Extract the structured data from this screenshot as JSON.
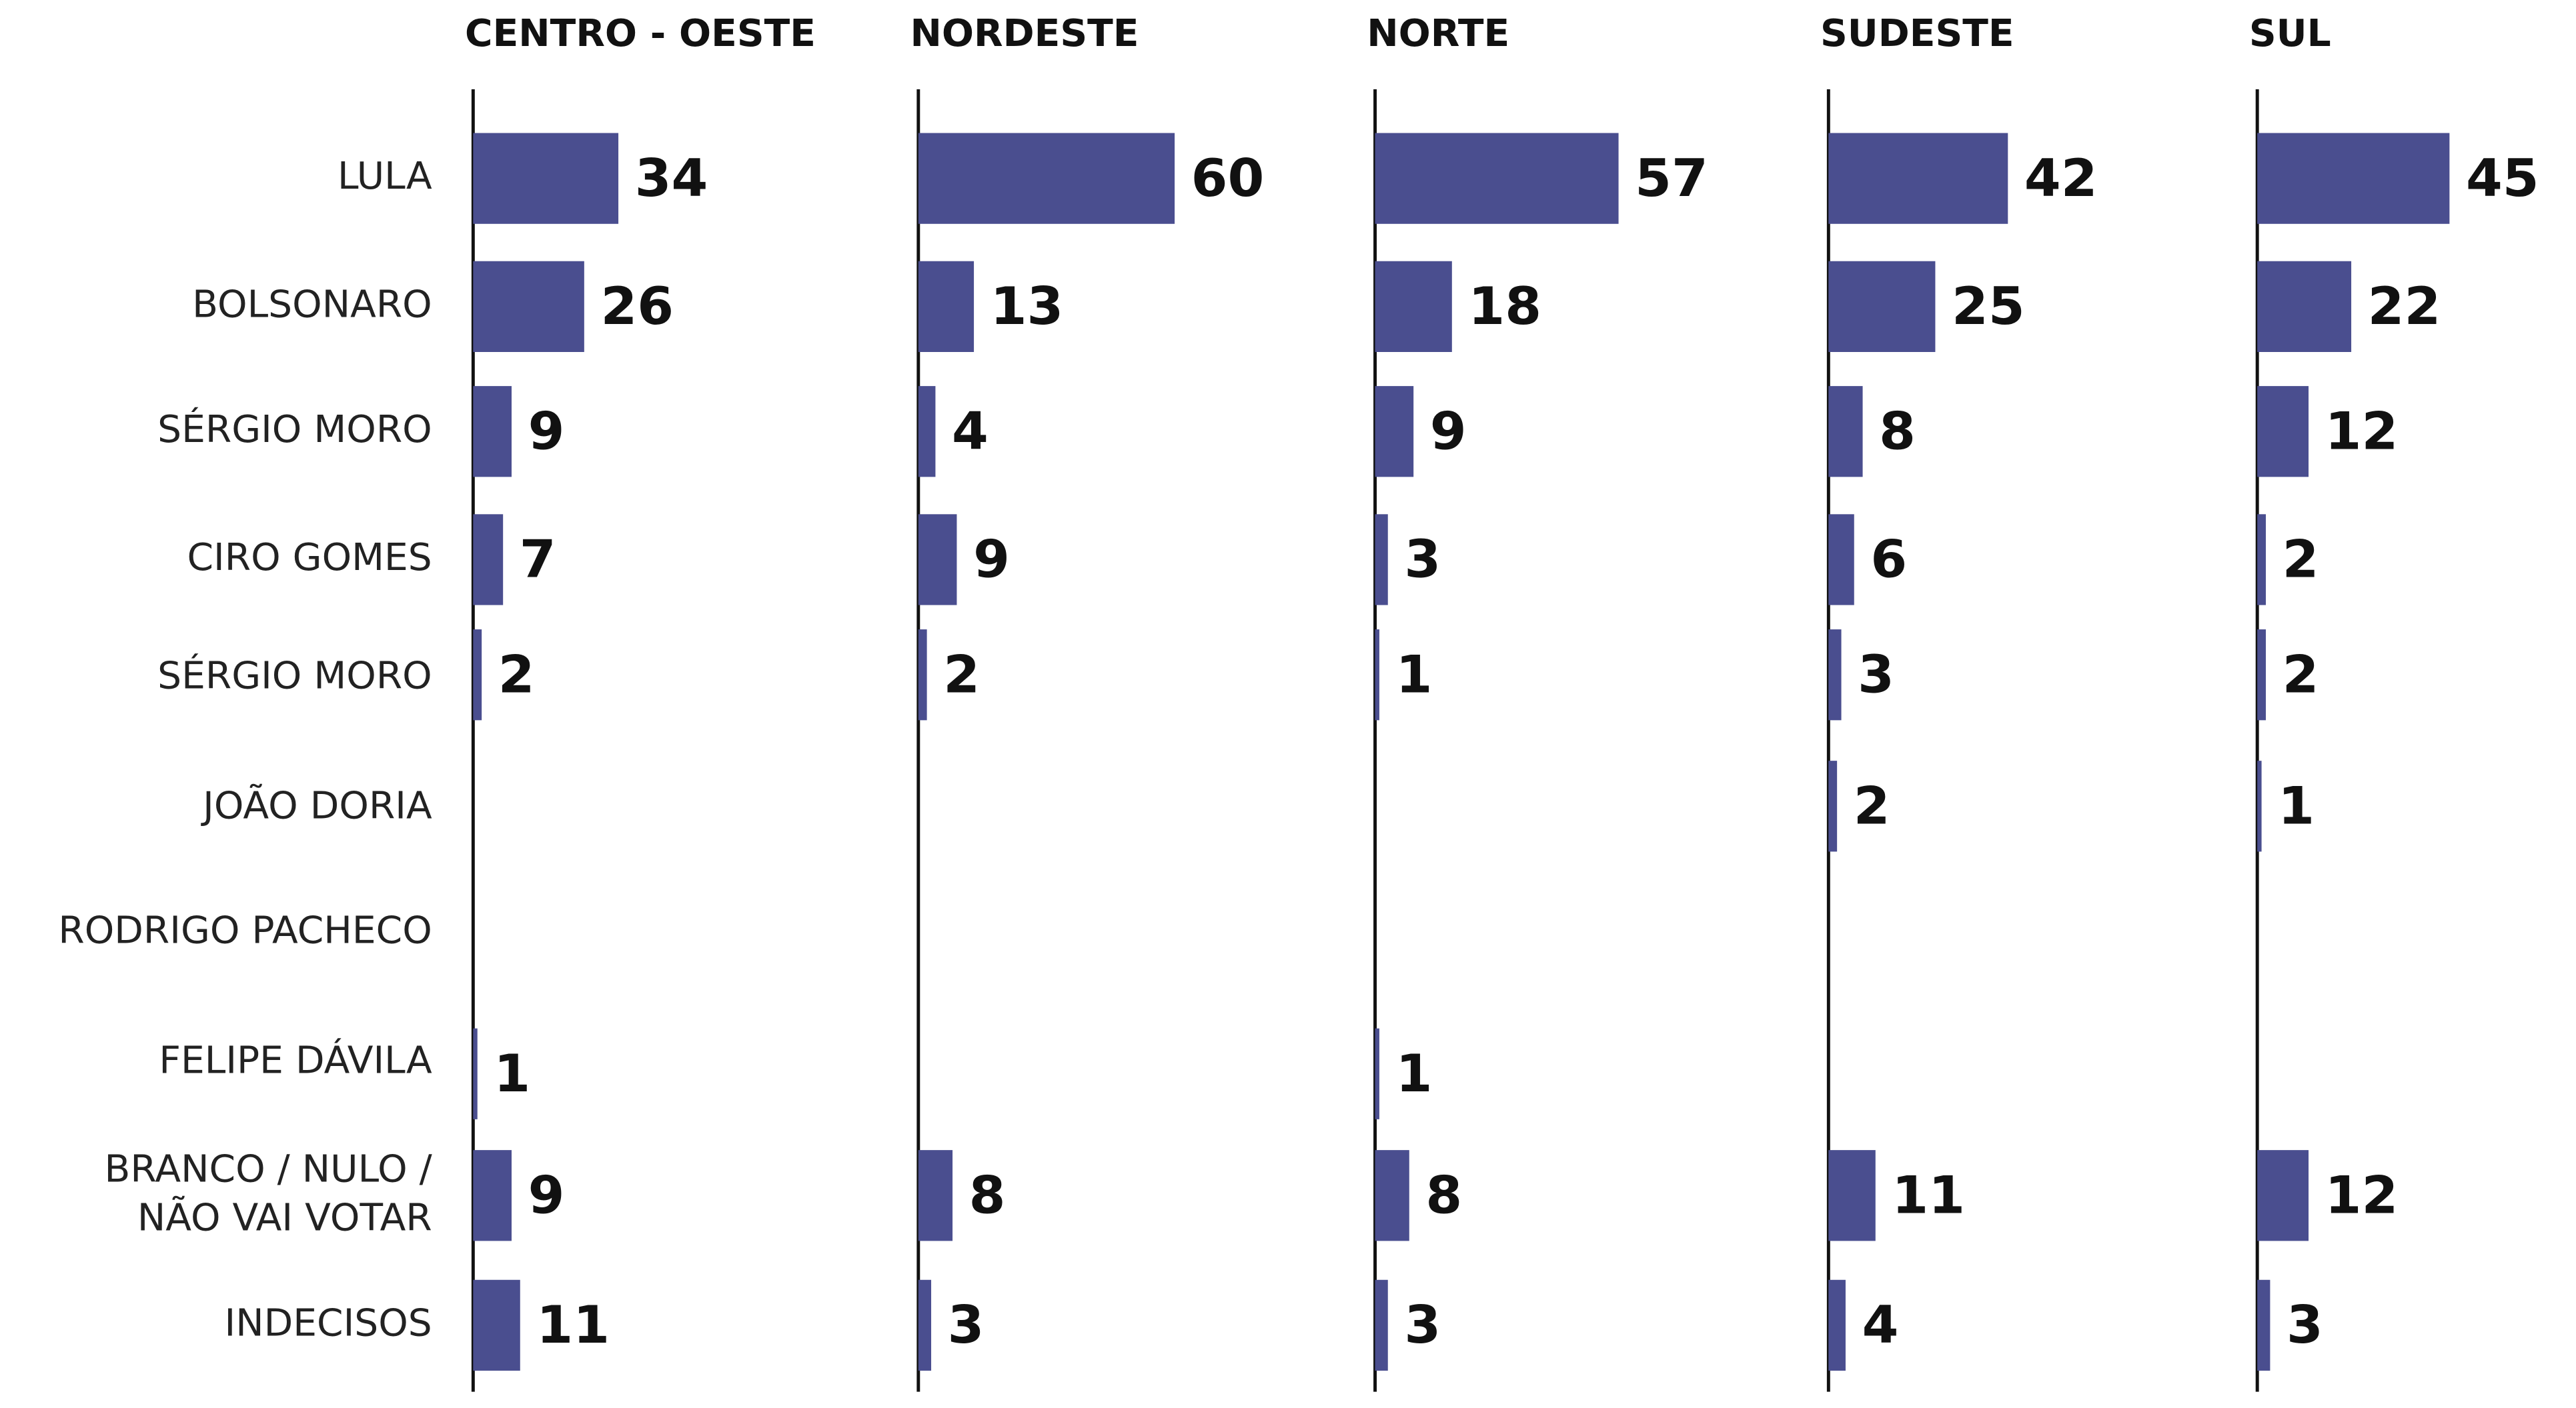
{
  "chart_data": {
    "type": "bar",
    "orientation": "horizontal",
    "color": "#4a4e8f",
    "categories": [
      "LULA",
      "BOLSONARO",
      "SÉRGIO MORO",
      "CIRO GOMES",
      "SÉRGIO MORO",
      "JOÃO DORIA",
      "RODRIGO PACHECO",
      "FELIPE DÁVILA",
      "BRANCO / NULO /\nNÃO VAI VOTAR",
      "INDECISOS"
    ],
    "series": [
      {
        "name": "CENTRO - OESTE",
        "values": [
          34,
          26,
          9,
          7,
          2,
          null,
          null,
          1,
          9,
          11
        ]
      },
      {
        "name": "NORDESTE",
        "values": [
          60,
          13,
          4,
          9,
          2,
          null,
          null,
          null,
          8,
          3
        ]
      },
      {
        "name": "NORTE",
        "values": [
          57,
          18,
          9,
          3,
          1,
          null,
          null,
          1,
          8,
          3
        ]
      },
      {
        "name": "SUDESTE",
        "values": [
          42,
          25,
          8,
          6,
          3,
          2,
          null,
          null,
          11,
          4
        ]
      },
      {
        "name": "SUL",
        "values": [
          45,
          22,
          12,
          2,
          2,
          1,
          null,
          null,
          12,
          3
        ]
      }
    ]
  }
}
